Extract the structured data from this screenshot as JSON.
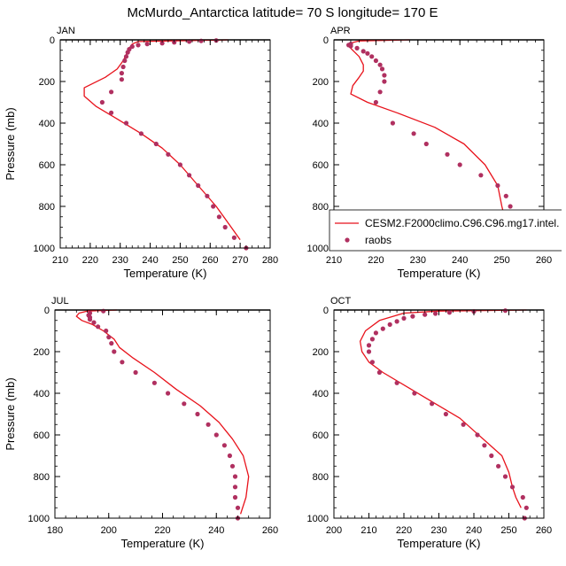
{
  "figure_title": "McMurdo_Antarctica  latitude= 70 S longitude= 170 E",
  "legend": {
    "model_label": "CESM2.F2000climo.C96.C96.mg17.intel.",
    "obs_label": "raobs"
  },
  "colors": {
    "model": "#e8121b",
    "obs": "#b03060",
    "frame": "#000000"
  },
  "chart_data": [
    {
      "type": "line",
      "panel": "JAN",
      "xlabel": "Temperature (K)",
      "ylabel": "Pressure (mb)",
      "xlim": [
        210,
        280
      ],
      "ylim": [
        1000,
        0
      ],
      "xticks": [
        210,
        220,
        230,
        240,
        250,
        260,
        270,
        280
      ],
      "yticks": [
        0,
        200,
        400,
        600,
        800,
        1000
      ],
      "model": [
        [
          266,
          0
        ],
        [
          236,
          8
        ],
        [
          234,
          20
        ],
        [
          233,
          40
        ],
        [
          232,
          70
        ],
        [
          231,
          100
        ],
        [
          229,
          140
        ],
        [
          225,
          180
        ],
        [
          218,
          230
        ],
        [
          218,
          270
        ],
        [
          222,
          320
        ],
        [
          229,
          380
        ],
        [
          237,
          450
        ],
        [
          244,
          520
        ],
        [
          250,
          600
        ],
        [
          256,
          700
        ],
        [
          262,
          800
        ],
        [
          267,
          900
        ],
        [
          270,
          960
        ]
      ],
      "raobs": [
        [
          262,
          3
        ],
        [
          257,
          5
        ],
        [
          253,
          8
        ],
        [
          248,
          12
        ],
        [
          244,
          16
        ],
        [
          239,
          20
        ],
        [
          236,
          25
        ],
        [
          234,
          32
        ],
        [
          233,
          45
        ],
        [
          232.5,
          60
        ],
        [
          232,
          80
        ],
        [
          231.5,
          100
        ],
        [
          231,
          130
        ],
        [
          230.5,
          160
        ],
        [
          230.5,
          190
        ],
        [
          227,
          250
        ],
        [
          224,
          300
        ],
        [
          227,
          350
        ],
        [
          232,
          400
        ],
        [
          237,
          450
        ],
        [
          242,
          500
        ],
        [
          246,
          550
        ],
        [
          250,
          600
        ],
        [
          253,
          650
        ],
        [
          256,
          700
        ],
        [
          259,
          750
        ],
        [
          261,
          800
        ],
        [
          263,
          850
        ],
        [
          265,
          900
        ],
        [
          268,
          950
        ],
        [
          272,
          1000
        ]
      ]
    },
    {
      "type": "line",
      "panel": "APR",
      "xlabel": "Temperature (K)",
      "ylabel": "",
      "xlim": [
        210,
        260
      ],
      "ylim": [
        1000,
        0
      ],
      "xticks": [
        210,
        220,
        230,
        240,
        250,
        260
      ],
      "yticks": [
        0,
        200,
        400,
        600,
        800,
        1000
      ],
      "model": [
        [
          228,
          0
        ],
        [
          216,
          5
        ],
        [
          214,
          15
        ],
        [
          213.5,
          30
        ],
        [
          214.5,
          50
        ],
        [
          216,
          80
        ],
        [
          217,
          120
        ],
        [
          217,
          150
        ],
        [
          216,
          180
        ],
        [
          214.5,
          220
        ],
        [
          214,
          260
        ],
        [
          218,
          300
        ],
        [
          225,
          350
        ],
        [
          234,
          420
        ],
        [
          241,
          500
        ],
        [
          246,
          600
        ],
        [
          249,
          700
        ],
        [
          250,
          800
        ],
        [
          251,
          880
        ],
        [
          253,
          940
        ],
        [
          255,
          960
        ]
      ],
      "raobs": [
        [
          214,
          20
        ],
        [
          213.5,
          25
        ],
        [
          214,
          30
        ],
        [
          215.5,
          40
        ],
        [
          217,
          55
        ],
        [
          218,
          65
        ],
        [
          219,
          80
        ],
        [
          220,
          100
        ],
        [
          221,
          120
        ],
        [
          221.5,
          140
        ],
        [
          222,
          170
        ],
        [
          222,
          200
        ],
        [
          221,
          250
        ],
        [
          220,
          300
        ],
        [
          224,
          400
        ],
        [
          229,
          450
        ],
        [
          232,
          500
        ],
        [
          237,
          550
        ],
        [
          240,
          600
        ],
        [
          245,
          650
        ],
        [
          249,
          700
        ],
        [
          251,
          750
        ],
        [
          252,
          800
        ],
        [
          252.5,
          850
        ],
        [
          253,
          900
        ],
        [
          254,
          950
        ],
        [
          256,
          1000
        ]
      ]
    },
    {
      "type": "line",
      "panel": "JUL",
      "xlabel": "Temperature (K)",
      "ylabel": "Pressure (mb)",
      "xlim": [
        180,
        260
      ],
      "ylim": [
        1000,
        0
      ],
      "xticks": [
        180,
        200,
        220,
        240,
        260
      ],
      "yticks": [
        0,
        200,
        400,
        600,
        800,
        1000
      ],
      "model": [
        [
          203,
          0
        ],
        [
          192,
          5
        ],
        [
          189,
          15
        ],
        [
          188,
          30
        ],
        [
          190,
          50
        ],
        [
          194,
          70
        ],
        [
          198,
          100
        ],
        [
          202,
          140
        ],
        [
          204,
          180
        ],
        [
          209,
          230
        ],
        [
          217,
          300
        ],
        [
          225,
          380
        ],
        [
          234,
          460
        ],
        [
          241,
          540
        ],
        [
          246,
          620
        ],
        [
          250,
          700
        ],
        [
          252,
          800
        ],
        [
          251,
          900
        ],
        [
          249,
          980
        ]
      ],
      "raobs": [
        [
          198,
          5
        ],
        [
          193,
          15
        ],
        [
          192.5,
          25
        ],
        [
          193,
          35
        ],
        [
          193,
          45
        ],
        [
          194.5,
          60
        ],
        [
          196,
          80
        ],
        [
          199,
          100
        ],
        [
          200,
          130
        ],
        [
          201,
          160
        ],
        [
          202,
          200
        ],
        [
          205,
          250
        ],
        [
          210,
          300
        ],
        [
          217,
          350
        ],
        [
          222,
          400
        ],
        [
          228,
          450
        ],
        [
          233,
          500
        ],
        [
          237,
          550
        ],
        [
          240,
          600
        ],
        [
          243,
          650
        ],
        [
          245,
          700
        ],
        [
          246,
          750
        ],
        [
          247,
          800
        ],
        [
          247,
          850
        ],
        [
          247,
          900
        ],
        [
          248,
          950
        ],
        [
          248,
          1000
        ]
      ]
    },
    {
      "type": "line",
      "panel": "OCT",
      "xlabel": "Temperature (K)",
      "ylabel": "",
      "xlim": [
        200,
        260
      ],
      "ylim": [
        1000,
        0
      ],
      "xticks": [
        200,
        210,
        220,
        230,
        240,
        250,
        260
      ],
      "yticks": [
        0,
        200,
        400,
        600,
        800,
        1000
      ],
      "model": [
        [
          255,
          0
        ],
        [
          230,
          5
        ],
        [
          220,
          15
        ],
        [
          213,
          50
        ],
        [
          209,
          100
        ],
        [
          207.5,
          150
        ],
        [
          208,
          200
        ],
        [
          210,
          250
        ],
        [
          214,
          300
        ],
        [
          222,
          380
        ],
        [
          229,
          450
        ],
        [
          236,
          520
        ],
        [
          240,
          580
        ],
        [
          244,
          640
        ],
        [
          248,
          700
        ],
        [
          250,
          780
        ],
        [
          251,
          850
        ],
        [
          252,
          900
        ],
        [
          253.5,
          950
        ]
      ],
      "raobs": [
        [
          249,
          3
        ],
        [
          240,
          7
        ],
        [
          233,
          12
        ],
        [
          229,
          17
        ],
        [
          226,
          22
        ],
        [
          222.5,
          30
        ],
        [
          220,
          40
        ],
        [
          218,
          55
        ],
        [
          216,
          70
        ],
        [
          214,
          90
        ],
        [
          212,
          110
        ],
        [
          211,
          140
        ],
        [
          210,
          170
        ],
        [
          210,
          200
        ],
        [
          211,
          250
        ],
        [
          213,
          300
        ],
        [
          218,
          350
        ],
        [
          223,
          400
        ],
        [
          228,
          450
        ],
        [
          232,
          500
        ],
        [
          237,
          550
        ],
        [
          241,
          600
        ],
        [
          243,
          650
        ],
        [
          245,
          700
        ],
        [
          247,
          750
        ],
        [
          249,
          800
        ],
        [
          251,
          850
        ],
        [
          254,
          900
        ],
        [
          255,
          950
        ],
        [
          254.5,
          1000
        ]
      ]
    }
  ]
}
